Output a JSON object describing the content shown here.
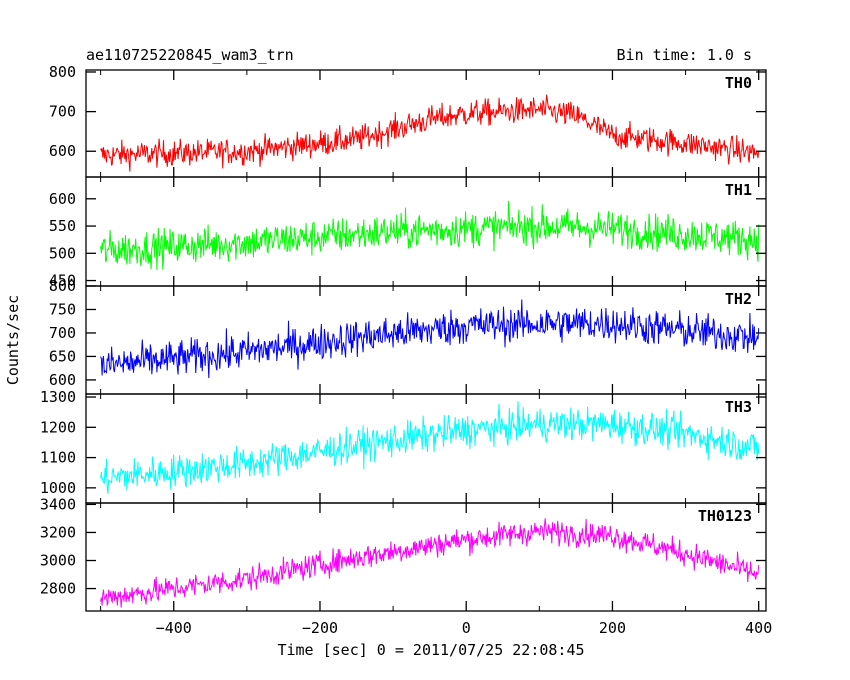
{
  "header": {
    "title_left": "ae110725220845_wam3_trn",
    "title_right": "Bin time: 1.0 s"
  },
  "chart_data": {
    "type": "line",
    "title": "ae110725220845_wam3_trn",
    "subtitle": "Bin time: 1.0 s",
    "xlabel": "Time [sec] 0 = 2011/07/25 22:08:45",
    "ylabel": "Counts/sec",
    "xlim": [
      -520,
      410
    ],
    "x_ticks": [
      -400,
      -200,
      0,
      200,
      400
    ],
    "x_tick_labels": [
      "−400",
      "−200",
      "0",
      "200",
      "400"
    ],
    "grid": false,
    "panels": [
      {
        "name": "TH0",
        "color": "#ff0000",
        "ylim": [
          535,
          805
        ],
        "y_ticks": [
          600,
          700,
          800
        ],
        "x_range": [
          -500,
          400
        ],
        "trend_x": [
          -500,
          -300,
          -150,
          -50,
          0,
          50,
          100,
          150,
          200,
          300,
          400
        ],
        "trend_y": [
          590,
          600,
          630,
          680,
          695,
          700,
          705,
          690,
          640,
          620,
          595
        ],
        "noise": 30
      },
      {
        "name": "TH1",
        "color": "#00ff00",
        "ylim": [
          440,
          640
        ],
        "y_ticks": [
          450,
          500,
          550,
          600
        ],
        "x_range": [
          -500,
          400
        ],
        "trend_x": [
          -500,
          -300,
          -100,
          0,
          100,
          200,
          300,
          400
        ],
        "trend_y": [
          505,
          520,
          540,
          545,
          550,
          545,
          535,
          525
        ],
        "noise": 30
      },
      {
        "name": "TH2",
        "color": "#0000ff",
        "ylim": [
          570,
          800
        ],
        "y_ticks": [
          600,
          650,
          700,
          750,
          800
        ],
        "x_range": [
          -500,
          400
        ],
        "trend_x": [
          -500,
          -300,
          -150,
          0,
          100,
          200,
          300,
          400
        ],
        "trend_y": [
          630,
          660,
          690,
          715,
          720,
          720,
          705,
          690
        ],
        "noise": 35
      },
      {
        "name": "TH3",
        "color": "#00ffff",
        "ylim": [
          950,
          1310
        ],
        "y_ticks": [
          1000,
          1100,
          1200,
          1300
        ],
        "x_range": [
          -500,
          400
        ],
        "trend_x": [
          -500,
          -300,
          -150,
          0,
          100,
          200,
          300,
          400
        ],
        "trend_y": [
          1030,
          1080,
          1140,
          1190,
          1210,
          1210,
          1180,
          1130
        ],
        "noise": 50
      },
      {
        "name": "TH0123",
        "color": "#ff00ff",
        "ylim": [
          2640,
          3410
        ],
        "y_ticks": [
          2800,
          3000,
          3200,
          3400
        ],
        "y_tick_labels": [
          "2800",
          "3000",
          "3200",
          "3400"
        ],
        "x_range": [
          -500,
          400
        ],
        "trend_x": [
          -500,
          -300,
          -150,
          0,
          100,
          200,
          300,
          400
        ],
        "trend_y": [
          2730,
          2870,
          3020,
          3150,
          3210,
          3180,
          3050,
          2900
        ],
        "noise": 80
      }
    ]
  }
}
